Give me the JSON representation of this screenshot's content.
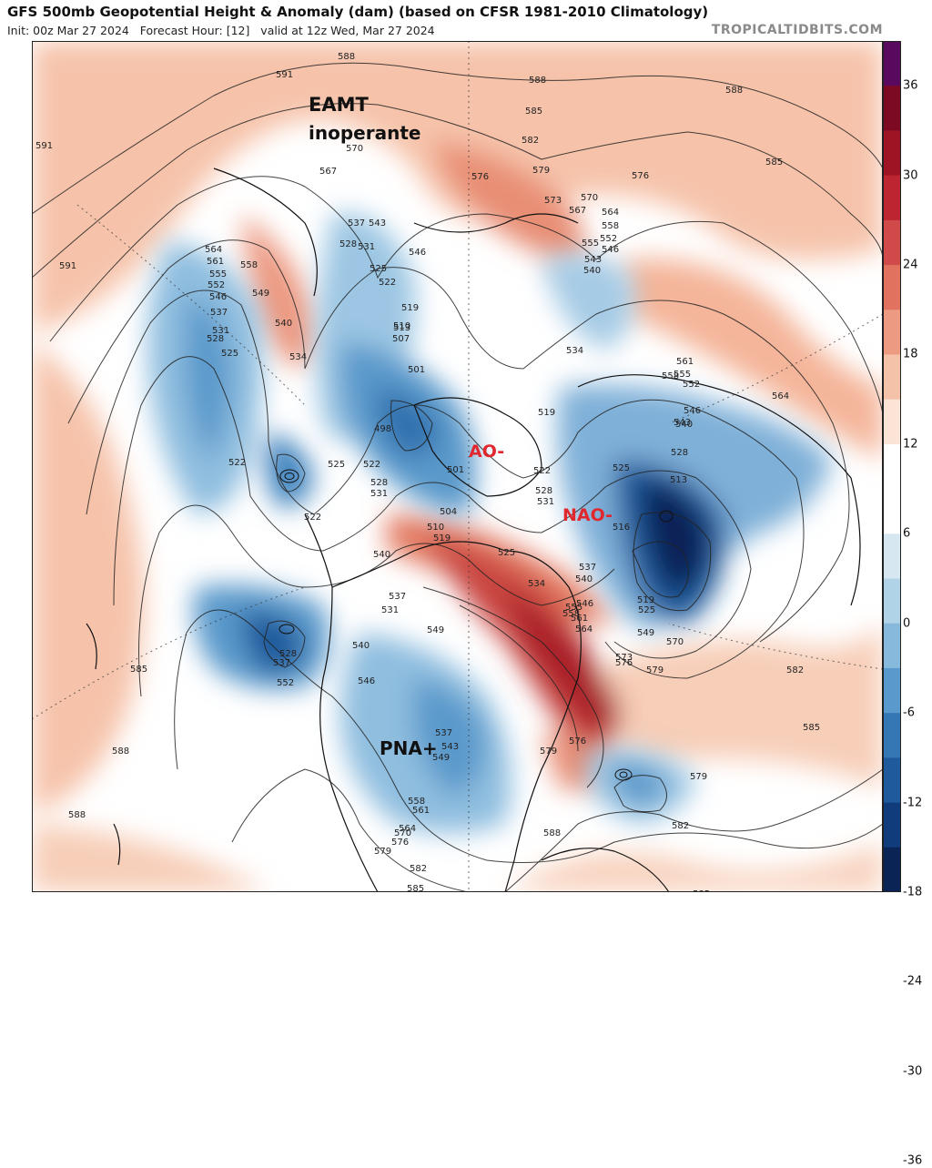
{
  "header": {
    "title": "GFS 500mb Geopotential Height & Anomaly (dam) (based on CFSR 1981-2010 Climatology)",
    "subtitle": "Init: 00z Mar 27 2024   Forecast Hour: [12]   valid at 12z Wed, Mar 27 2024",
    "credit": "TROPICALTIDBITS.COM"
  },
  "annotations": {
    "eamt_line1": "EAMT",
    "eamt_line2": "inoperante",
    "ao": "AO-",
    "nao": "NAO-",
    "pna": "PNA+"
  },
  "colorbar": {
    "labels": [
      "36",
      "30",
      "24",
      "18",
      "12",
      "6",
      "0",
      "-6",
      "-12",
      "-18",
      "-24",
      "-30",
      "-36"
    ],
    "colors": [
      "#5a0a5e",
      "#7c0a23",
      "#9e1424",
      "#bd2530",
      "#d14a4a",
      "#e0725f",
      "#ec9a82",
      "#f4c2a8",
      "#fbe3d6",
      "#ffffff",
      "#ffffff",
      "#d6e7f2",
      "#b1d3e8",
      "#87b9dc",
      "#5a99cb",
      "#3577b5",
      "#1f5a9c",
      "#103c7b",
      "#0a2456"
    ]
  },
  "contour_labels": [
    "591",
    "588",
    "585",
    "582",
    "579",
    "576",
    "573",
    "570",
    "567",
    "564",
    "561",
    "558",
    "555",
    "552",
    "549",
    "546",
    "543",
    "540",
    "537",
    "534",
    "531",
    "528",
    "525",
    "522",
    "519",
    "516",
    "513",
    "510",
    "507",
    "504",
    "501",
    "498"
  ]
}
